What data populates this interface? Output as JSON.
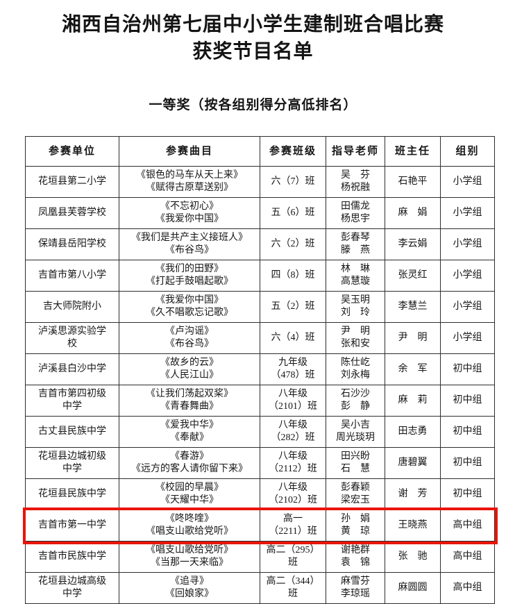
{
  "page": {
    "title_line1": "湘西自治州第七届中小学生建制班合唱比赛",
    "title_line2": "获奖节目名单",
    "subtitle": "一等奖（按各组别得分高低排名）"
  },
  "table": {
    "highlight_color": "#e8150b",
    "headers": [
      "参赛单位",
      "参赛曲目",
      "参赛班级",
      "指导老师",
      "班主任",
      "组别"
    ],
    "rows": [
      {
        "unit": "花垣县第二小学",
        "songs": [
          "《银色的马车从天上来》",
          "《赋得古原草送别》"
        ],
        "class_lines": [
          "六（7）班"
        ],
        "teachers": [
          "吴　芬",
          "杨祝融"
        ],
        "head_teacher": "石艳平",
        "group": "小学组",
        "highlight": false
      },
      {
        "unit": "凤凰县芙蓉学校",
        "songs": [
          "《不忘初心》",
          "《我爱你中国》"
        ],
        "class_lines": [
          "五（6）班"
        ],
        "teachers": [
          "田儒龙",
          "杨思宇"
        ],
        "head_teacher": "麻　娟",
        "group": "小学组",
        "highlight": false
      },
      {
        "unit": "保靖县岳阳学校",
        "songs": [
          "《我们是共产主义接班人》",
          "《布谷鸟》"
        ],
        "class_lines": [
          "六（2）班"
        ],
        "teachers": [
          "彭春琴",
          "滕　燕"
        ],
        "head_teacher": "李云娟",
        "group": "小学组",
        "highlight": false
      },
      {
        "unit": "吉首市第八小学",
        "songs": [
          "《我们的田野》",
          "《打起手鼓唱起歌》"
        ],
        "class_lines": [
          "四（8）班"
        ],
        "teachers": [
          "林　琳",
          "高慧璇"
        ],
        "head_teacher": "张灵红",
        "group": "小学组",
        "highlight": false
      },
      {
        "unit": "吉大师院附小",
        "songs": [
          "《我爱你中国》",
          "《久不唱歌忘记歌》"
        ],
        "class_lines": [
          "五（2）班"
        ],
        "teachers": [
          "吴玉明",
          "刘　玲"
        ],
        "head_teacher": "李慧兰",
        "group": "小学组",
        "highlight": false
      },
      {
        "unit": "泸溪思源实验学校",
        "songs": [
          "《卢沟谣》",
          "《布谷鸟》"
        ],
        "class_lines": [
          "六（4）班"
        ],
        "teachers": [
          "尹　明",
          "张和安"
        ],
        "head_teacher": "尹　明",
        "group": "小学组",
        "highlight": false
      },
      {
        "unit": "泸溪县白沙中学",
        "songs": [
          "《故乡的云》",
          "《人民江山》"
        ],
        "class_lines": [
          "九年级",
          "（478）班"
        ],
        "teachers": [
          "陈仕屹",
          "刘永梅"
        ],
        "head_teacher": "余　军",
        "group": "初中组",
        "highlight": false
      },
      {
        "unit": "吉首市第四初级中学",
        "songs": [
          "《让我们荡起双桨》",
          "《青春舞曲》"
        ],
        "class_lines": [
          "八年级",
          "（2101）班"
        ],
        "teachers": [
          "石沙沙",
          "彭　静"
        ],
        "head_teacher": "麻　莉",
        "group": "初中组",
        "highlight": false
      },
      {
        "unit": "古丈县民族中学",
        "songs": [
          "《爱我中华》",
          "《奉献》"
        ],
        "class_lines": [
          "八年级",
          "（282）班"
        ],
        "teachers": [
          "吴小吉",
          "周光琰玥"
        ],
        "head_teacher": "田志勇",
        "group": "初中组",
        "highlight": false
      },
      {
        "unit": "花垣县边城初级中学",
        "songs": [
          "《春游》",
          "《远方的客人请你留下来》"
        ],
        "class_lines": [
          "八年级",
          "（2112）班"
        ],
        "teachers": [
          "田兴盼",
          "石　慧"
        ],
        "head_teacher": "唐碧翼",
        "group": "初中组",
        "highlight": false
      },
      {
        "unit": "花垣县民族中学",
        "songs": [
          "《校园的早晨》",
          "《天耀中华》"
        ],
        "class_lines": [
          "八年级",
          "（2102）班"
        ],
        "teachers": [
          "彭春颖",
          "梁宏玉"
        ],
        "head_teacher": "谢　芳",
        "group": "初中组",
        "highlight": false
      },
      {
        "unit": "吉首市第一中学",
        "songs": [
          "《咚咚喹》",
          "《唱支山歌给党听》"
        ],
        "class_lines": [
          "高一",
          "（2211）班"
        ],
        "teachers": [
          "孙　娟",
          "黄　琼"
        ],
        "head_teacher": "王晓燕",
        "group": "高中组",
        "highlight": true
      },
      {
        "unit": "吉首市民族中学",
        "songs": [
          "《唱支山歌给党听》",
          "《当那一天来临》"
        ],
        "class_lines": [
          "高二（295）",
          "班"
        ],
        "teachers": [
          "谢艳群",
          "袁　锦"
        ],
        "head_teacher": "张　驰",
        "group": "高中组",
        "highlight": false
      },
      {
        "unit": "花垣县边城高级中学",
        "songs": [
          "《追寻》",
          "《回娘家》"
        ],
        "class_lines": [
          "高二（344）",
          "班"
        ],
        "teachers": [
          "麻雪芬",
          "李琼瑶"
        ],
        "head_teacher": "麻圆圆",
        "group": "高中组",
        "highlight": false
      }
    ]
  }
}
